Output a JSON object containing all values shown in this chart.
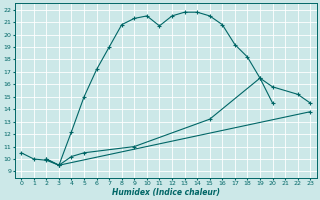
{
  "xlabel": "Humidex (Indice chaleur)",
  "bg_color": "#cce8e8",
  "grid_color": "#aacccc",
  "line_color": "#006666",
  "xlim": [
    -0.5,
    23.5
  ],
  "ylim": [
    8.5,
    22.5
  ],
  "xticks": [
    0,
    1,
    2,
    3,
    4,
    5,
    6,
    7,
    8,
    9,
    10,
    11,
    12,
    13,
    14,
    15,
    16,
    17,
    18,
    19,
    20,
    21,
    22,
    23
  ],
  "yticks": [
    9,
    10,
    11,
    12,
    13,
    14,
    15,
    16,
    17,
    18,
    19,
    20,
    21,
    22
  ],
  "line1_x": [
    0,
    1,
    2,
    3,
    4,
    5,
    6,
    7,
    8,
    9,
    10,
    11,
    12,
    13,
    14,
    15,
    16,
    17,
    18,
    19,
    20
  ],
  "line1_y": [
    10.5,
    10.0,
    9.9,
    9.5,
    12.2,
    15.0,
    17.2,
    19.0,
    20.8,
    21.3,
    21.5,
    20.7,
    21.5,
    21.8,
    21.8,
    21.5,
    20.8,
    19.2,
    18.2,
    16.5,
    14.5
  ],
  "line2_x": [
    2,
    3,
    4,
    5,
    9,
    15,
    19,
    20,
    22,
    23
  ],
  "line2_y": [
    10.0,
    9.5,
    10.2,
    10.5,
    11.0,
    13.2,
    16.5,
    15.8,
    15.2,
    14.5
  ],
  "line3_x": [
    2,
    3,
    23
  ],
  "line3_y": [
    10.0,
    9.5,
    13.8
  ]
}
